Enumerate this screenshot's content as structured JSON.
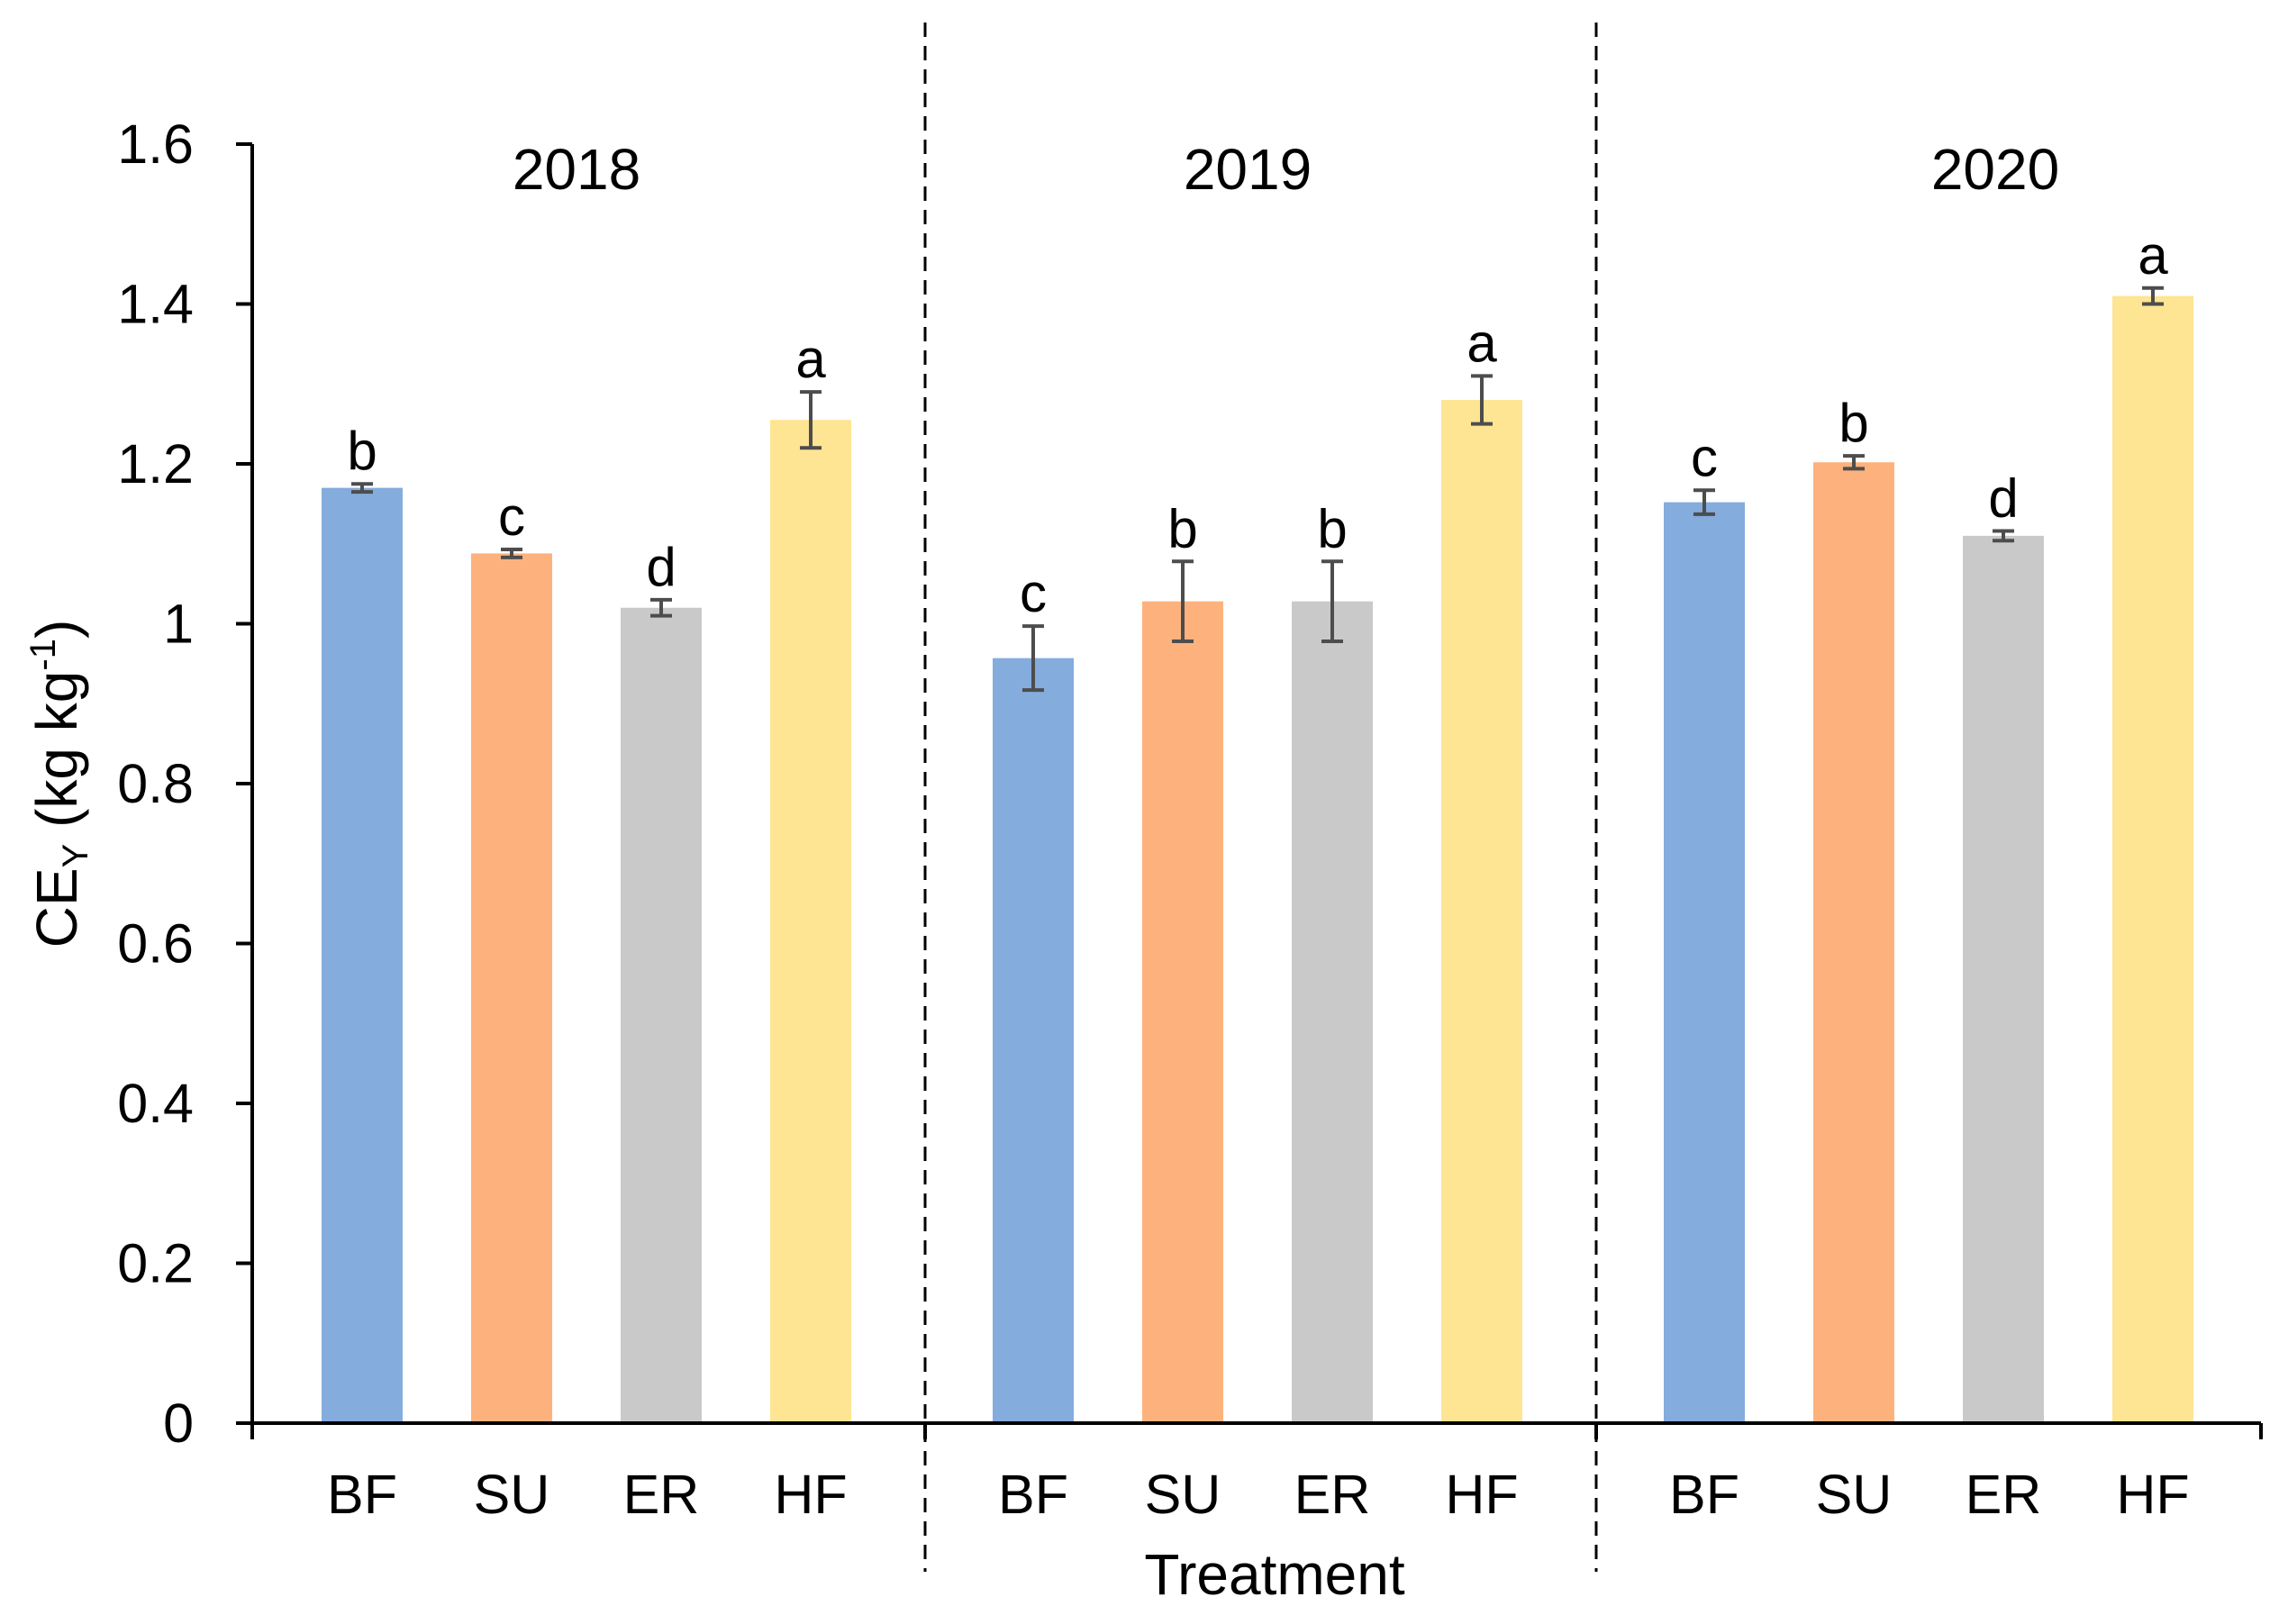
{
  "chart_data": {
    "type": "bar",
    "title": "",
    "xlabel": "Treatment",
    "ylabel": {
      "main": "CE",
      "subscript": "Y",
      "units_prefix": " (kg kg",
      "units_superscript": "-1",
      "units_suffix": ")"
    },
    "ylim": [
      0,
      1.6
    ],
    "yticks": [
      0,
      0.2,
      0.4,
      0.6,
      0.8,
      1,
      1.2,
      1.4,
      1.6
    ],
    "ytick_labels": [
      "0",
      "0.2",
      "0.4",
      "0.6",
      "0.8",
      "1",
      "1.2",
      "1.4",
      "1.6"
    ],
    "categories": [
      "BF",
      "SU",
      "ER",
      "HF"
    ],
    "colors": {
      "BF": "#84ACDD",
      "SU": "#FDB27E",
      "ER": "#C9C9C9",
      "HF": "#FEE593"
    },
    "error_bar_color": "#4D4D4D",
    "axis_color": "#000000",
    "groups": [
      {
        "year": "2018",
        "values": [
          1.17,
          1.088,
          1.02,
          1.255
        ],
        "errors": [
          0.005,
          0.005,
          0.01,
          0.035
        ],
        "letters": [
          "b",
          "c",
          "d",
          "a"
        ]
      },
      {
        "year": "2019",
        "values": [
          0.957,
          1.028,
          1.028,
          1.28
        ],
        "errors": [
          0.04,
          0.05,
          0.05,
          0.03
        ],
        "letters": [
          "c",
          "b",
          "b",
          "a"
        ]
      },
      {
        "year": "2020",
        "values": [
          1.152,
          1.202,
          1.11,
          1.41
        ],
        "errors": [
          0.015,
          0.008,
          0.006,
          0.01
        ],
        "letters": [
          "c",
          "b",
          "d",
          "a"
        ]
      }
    ]
  }
}
